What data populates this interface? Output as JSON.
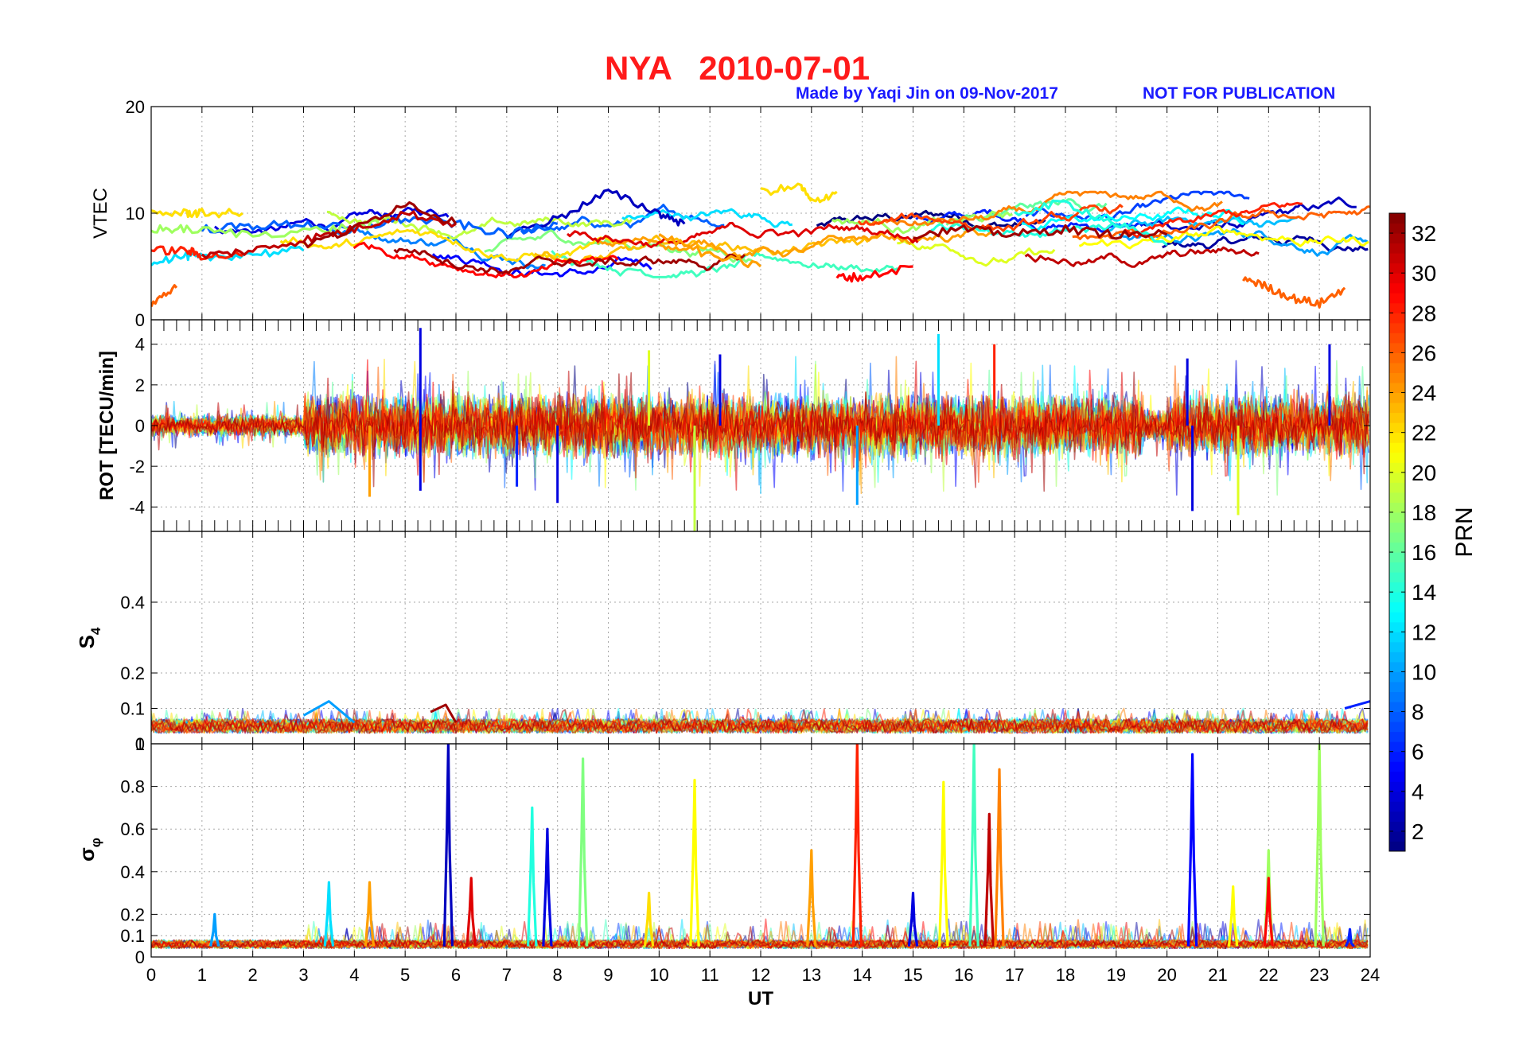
{
  "header": {
    "title": "NYA   2010-07-01",
    "credit": "Made by Yaqi Jin on 09-Nov-2017",
    "notice": "NOT FOR PUBLICATION",
    "title_color": "#ff1a1a",
    "credit_color": "#1a1aff"
  },
  "chart_data": [
    {
      "id": "vtec",
      "type": "line",
      "ylabel": "VTEC",
      "xlim": [
        0,
        24
      ],
      "ylim": [
        0,
        20
      ],
      "yticks": [
        0,
        10,
        20
      ],
      "grid": true,
      "series_summary": "32 PRN tracks colored by PRN; values mostly between 5 and 12 TECU",
      "series": [
        {
          "prn": 3,
          "x": [
            7,
            8,
            9,
            10,
            10.5
          ],
          "y": [
            8,
            9.5,
            12,
            10,
            9
          ]
        },
        {
          "prn": 8,
          "x": [
            1,
            2,
            3,
            4,
            5,
            6,
            7,
            8
          ],
          "y": [
            8.5,
            8.8,
            9,
            8.5,
            9.5,
            9,
            8,
            9
          ]
        },
        {
          "prn": 12,
          "x": [
            0,
            0.7,
            1,
            2,
            3
          ],
          "y": [
            5.5,
            6,
            5.8,
            6.2,
            6.5
          ]
        },
        {
          "prn": 14,
          "x": [
            17,
            18,
            19,
            20
          ],
          "y": [
            10,
            11,
            9,
            7
          ]
        },
        {
          "prn": 18,
          "x": [
            0,
            0.7,
            2,
            3.5,
            4.5
          ],
          "y": [
            8.5,
            8.5,
            8,
            8.5,
            9
          ]
        },
        {
          "prn": 22,
          "x": [
            0,
            0.7,
            1,
            1.8
          ],
          "y": [
            10,
            10,
            10,
            10
          ]
        },
        {
          "prn": 22,
          "x": [
            12,
            12.8,
            13,
            13.5
          ],
          "y": [
            12,
            12.5,
            11,
            12
          ]
        },
        {
          "prn": 24,
          "x": [
            10,
            11,
            12
          ],
          "y": [
            8,
            6,
            5
          ]
        },
        {
          "prn": 26,
          "x": [
            0,
            0.5
          ],
          "y": [
            1.5,
            3
          ]
        },
        {
          "prn": 26,
          "x": [
            21.5,
            22,
            22.5,
            23,
            23.5
          ],
          "y": [
            4,
            3,
            2,
            1.5,
            3
          ]
        },
        {
          "prn": 28,
          "x": [
            0,
            0.7,
            1,
            1.8
          ],
          "y": [
            6.5,
            6.5,
            6,
            6
          ]
        },
        {
          "prn": 29,
          "x": [
            13.5,
            14,
            15
          ],
          "y": [
            4,
            4,
            5
          ]
        },
        {
          "prn": 31,
          "x": [
            1,
            2,
            3,
            4,
            5,
            6
          ],
          "y": [
            6,
            6.5,
            7.5,
            8.5,
            10,
            9
          ]
        },
        {
          "prn": 32,
          "x": [
            3,
            4,
            5,
            6
          ],
          "y": [
            7,
            8.5,
            11,
            9
          ]
        },
        {
          "prn": 32,
          "x": [
            15,
            16,
            17,
            18,
            19,
            20
          ],
          "y": [
            8,
            8.5,
            8,
            8.5,
            8,
            8
          ]
        }
      ]
    },
    {
      "id": "rot",
      "type": "line",
      "ylabel": "ROT [TECU/min]",
      "xlim": [
        0,
        24
      ],
      "ylim": [
        -5.2,
        5.2
      ],
      "yticks": [
        -4,
        -2,
        0,
        2,
        4
      ],
      "grid": true,
      "series_summary": "ROT fluctuations around zero for all PRNs; largest spikes near 5.3 h (+4.8), 10.7 h (-5.2), 15.5 h (+4.5), 20.5 h (-4.2), 21.4 h (-4.4), 23.2 h (+4.0)",
      "spikes": [
        {
          "x": 5.3,
          "y": 4.8,
          "prn": 4
        },
        {
          "x": 5.3,
          "y": -3.2,
          "prn": 4
        },
        {
          "x": 4.3,
          "y": -3.5,
          "prn": 24
        },
        {
          "x": 7.2,
          "y": -3.0,
          "prn": 6
        },
        {
          "x": 8.0,
          "y": -3.8,
          "prn": 4
        },
        {
          "x": 9.8,
          "y": 3.7,
          "prn": 20
        },
        {
          "x": 10.7,
          "y": -5.2,
          "prn": 19
        },
        {
          "x": 11.2,
          "y": 3.5,
          "prn": 4
        },
        {
          "x": 13.9,
          "y": -3.9,
          "prn": 10
        },
        {
          "x": 15.5,
          "y": 4.5,
          "prn": 12
        },
        {
          "x": 16.6,
          "y": 4.0,
          "prn": 28
        },
        {
          "x": 20.5,
          "y": -4.2,
          "prn": 4
        },
        {
          "x": 20.4,
          "y": 3.3,
          "prn": 4
        },
        {
          "x": 21.4,
          "y": -4.4,
          "prn": 20
        },
        {
          "x": 23.2,
          "y": 4.0,
          "prn": 4
        }
      ]
    },
    {
      "id": "s4",
      "type": "line",
      "ylabel_main": "S",
      "ylabel_sub": "4",
      "xlim": [
        0,
        24
      ],
      "ylim": [
        0,
        0.6
      ],
      "yticks": [
        0,
        0.1,
        0.2,
        0.4
      ],
      "grid": true,
      "series_summary": "S4 stays mostly between 0.02 and 0.12 for all PRNs",
      "series": [
        {
          "prn": 10,
          "x": [
            3.0,
            3.5,
            4.0
          ],
          "y": [
            0.08,
            0.12,
            0.06
          ]
        },
        {
          "prn": 32,
          "x": [
            5.5,
            5.8,
            6.0
          ],
          "y": [
            0.09,
            0.11,
            0.06
          ]
        },
        {
          "prn": 6,
          "x": [
            23.5,
            24
          ],
          "y": [
            0.1,
            0.12
          ]
        }
      ]
    },
    {
      "id": "sigphi",
      "type": "line",
      "ylabel_main": "σ",
      "ylabel_sub": "φ",
      "xlim": [
        0,
        24
      ],
      "ylim": [
        0,
        1
      ],
      "yticks": [
        0,
        0.1,
        0.2,
        0.4,
        0.6,
        0.8,
        1
      ],
      "ytick_labels": [
        "0",
        "0.1",
        "0.2",
        "0.4",
        "0.6",
        "0.8",
        "1"
      ],
      "xticks": [
        0,
        1,
        2,
        3,
        4,
        5,
        6,
        7,
        8,
        9,
        10,
        11,
        12,
        13,
        14,
        15,
        16,
        17,
        18,
        19,
        20,
        21,
        22,
        23,
        24
      ],
      "xlabel": "UT",
      "grid": true,
      "peaks": [
        {
          "x": 1.25,
          "y": 0.2,
          "prn": 10
        },
        {
          "x": 3.5,
          "y": 0.35,
          "prn": 12
        },
        {
          "x": 4.3,
          "y": 0.35,
          "prn": 24
        },
        {
          "x": 5.85,
          "y": 1.0,
          "prn": 3
        },
        {
          "x": 6.3,
          "y": 0.37,
          "prn": 30
        },
        {
          "x": 7.5,
          "y": 0.7,
          "prn": 14
        },
        {
          "x": 7.8,
          "y": 0.6,
          "prn": 4
        },
        {
          "x": 8.5,
          "y": 0.93,
          "prn": 17
        },
        {
          "x": 9.8,
          "y": 0.3,
          "prn": 22
        },
        {
          "x": 10.7,
          "y": 0.83,
          "prn": 21
        },
        {
          "x": 13.0,
          "y": 0.5,
          "prn": 24
        },
        {
          "x": 13.9,
          "y": 1.0,
          "prn": 28
        },
        {
          "x": 15.0,
          "y": 0.3,
          "prn": 4
        },
        {
          "x": 15.6,
          "y": 0.82,
          "prn": 21
        },
        {
          "x": 16.2,
          "y": 1.0,
          "prn": 15
        },
        {
          "x": 16.5,
          "y": 0.67,
          "prn": 31
        },
        {
          "x": 16.7,
          "y": 0.88,
          "prn": 25
        },
        {
          "x": 20.5,
          "y": 0.95,
          "prn": 5
        },
        {
          "x": 21.3,
          "y": 0.33,
          "prn": 21
        },
        {
          "x": 22.0,
          "y": 0.5,
          "prn": 18
        },
        {
          "x": 22.0,
          "y": 0.37,
          "prn": 29
        },
        {
          "x": 23.0,
          "y": 1.0,
          "prn": 18
        },
        {
          "x": 23.6,
          "y": 0.13,
          "prn": 6
        }
      ]
    }
  ],
  "colorbar": {
    "label": "PRN",
    "min": 1,
    "max": 33,
    "ticks": [
      2,
      4,
      6,
      8,
      10,
      12,
      14,
      16,
      18,
      20,
      22,
      24,
      26,
      28,
      30,
      32
    ],
    "colormap": "jet"
  }
}
